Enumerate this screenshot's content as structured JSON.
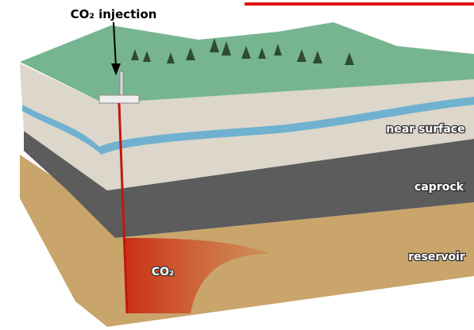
{
  "injection_label": "CO₂ injection",
  "layers": [
    "near surface",
    "caprock",
    "reservoir"
  ],
  "plume_label": "CO₂"
}
